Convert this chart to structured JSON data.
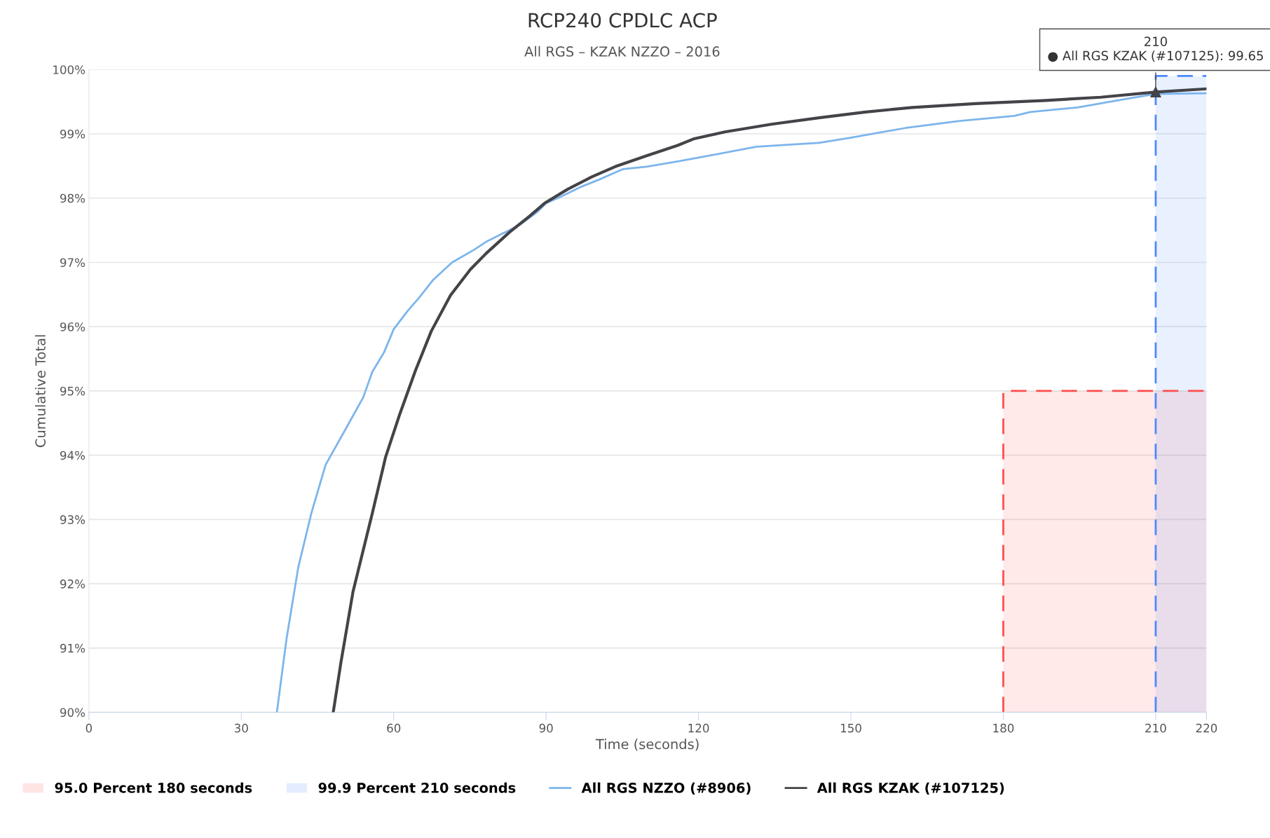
{
  "chart_data": {
    "type": "line",
    "title": "RCP240 CPDLC ACP",
    "subtitle": "All RGS – KZAK NZZO – 2016",
    "xlabel": "Time (seconds)",
    "ylabel": "Cumulative Total",
    "series": [
      {
        "name": "95.0 Percent 180 seconds",
        "type": "area",
        "color": "#ff4d4d",
        "line_style": "dashed",
        "x": [
          180,
          220
        ],
        "values": [
          95,
          95
        ]
      },
      {
        "name": "99.9 Percent 210 seconds",
        "type": "area",
        "color": "#4d88ff",
        "line_style": "dashed",
        "x": [
          210,
          220
        ],
        "values": [
          99.9,
          99.9
        ]
      },
      {
        "name": "All RGS NZZO (#8906)",
        "color": "#7cb5ec",
        "x": [
          37,
          38.9,
          41.2,
          43.8,
          46.6,
          51.2,
          54,
          55.8,
          58.1,
          60,
          62.7,
          65,
          67.8,
          71.5,
          75.9,
          78.2,
          82,
          85.1,
          88.2,
          90,
          92.8,
          96.7,
          100.5,
          105.1,
          109.8,
          115.9,
          122.1,
          131.4,
          143.7,
          149.9,
          160.7,
          171.4,
          182.2,
          185.3,
          194.6,
          205.4,
          210,
          220
        ],
        "values": [
          90,
          91.14,
          92.25,
          93.1,
          93.85,
          94.5,
          94.9,
          95.3,
          95.6,
          95.96,
          96.24,
          96.45,
          96.73,
          97.0,
          97.2,
          97.32,
          97.47,
          97.6,
          97.78,
          97.92,
          98.02,
          98.17,
          98.29,
          98.45,
          98.49,
          98.57,
          98.66,
          98.8,
          98.86,
          98.94,
          99.09,
          99.2,
          99.28,
          99.34,
          99.41,
          99.56,
          99.62,
          99.63
        ]
      },
      {
        "name": "All RGS KZAK (#107125)",
        "color": "#434348",
        "x": [
          48.1,
          49.6,
          52,
          55.8,
          58.4,
          61.2,
          64.3,
          67.4,
          71.2,
          75.1,
          78.2,
          82.8,
          86.6,
          89.7,
          94.3,
          99,
          103.6,
          109.8,
          115.9,
          119,
          125.2,
          134.4,
          143.7,
          152.9,
          162.1,
          174.5,
          188.4,
          199.2,
          210,
          220
        ],
        "values": [
          90,
          90.77,
          91.88,
          93.1,
          93.97,
          94.64,
          95.32,
          95.93,
          96.49,
          96.89,
          97.14,
          97.47,
          97.71,
          97.92,
          98.14,
          98.33,
          98.49,
          98.66,
          98.82,
          98.92,
          99.03,
          99.15,
          99.25,
          99.34,
          99.41,
          99.47,
          99.52,
          99.57,
          99.65,
          99.7
        ]
      }
    ],
    "xlim": [
      0,
      220
    ],
    "xticks": [
      0,
      30,
      60,
      90,
      120,
      150,
      180,
      210,
      220
    ],
    "ylim": [
      90,
      100
    ],
    "yticks": [
      {
        "value": 90,
        "label": "90%"
      },
      {
        "value": 91,
        "label": "91%"
      },
      {
        "value": 92,
        "label": "92%"
      },
      {
        "value": 93,
        "label": "93%"
      },
      {
        "value": 94,
        "label": "94%"
      },
      {
        "value": 95,
        "label": "95%"
      },
      {
        "value": 96,
        "label": "96%"
      },
      {
        "value": 97,
        "label": "97%"
      },
      {
        "value": 98,
        "label": "98%"
      },
      {
        "value": 99,
        "label": "99%"
      },
      {
        "value": 100,
        "label": "100%"
      }
    ],
    "grid": "y",
    "legend": "bottom",
    "marker": "none",
    "line_style": "solid",
    "annotations": [
      {
        "text": "210\n● All RGS KZAK (#107125): 99.65",
        "x": 210,
        "y": 99.65
      }
    ]
  }
}
